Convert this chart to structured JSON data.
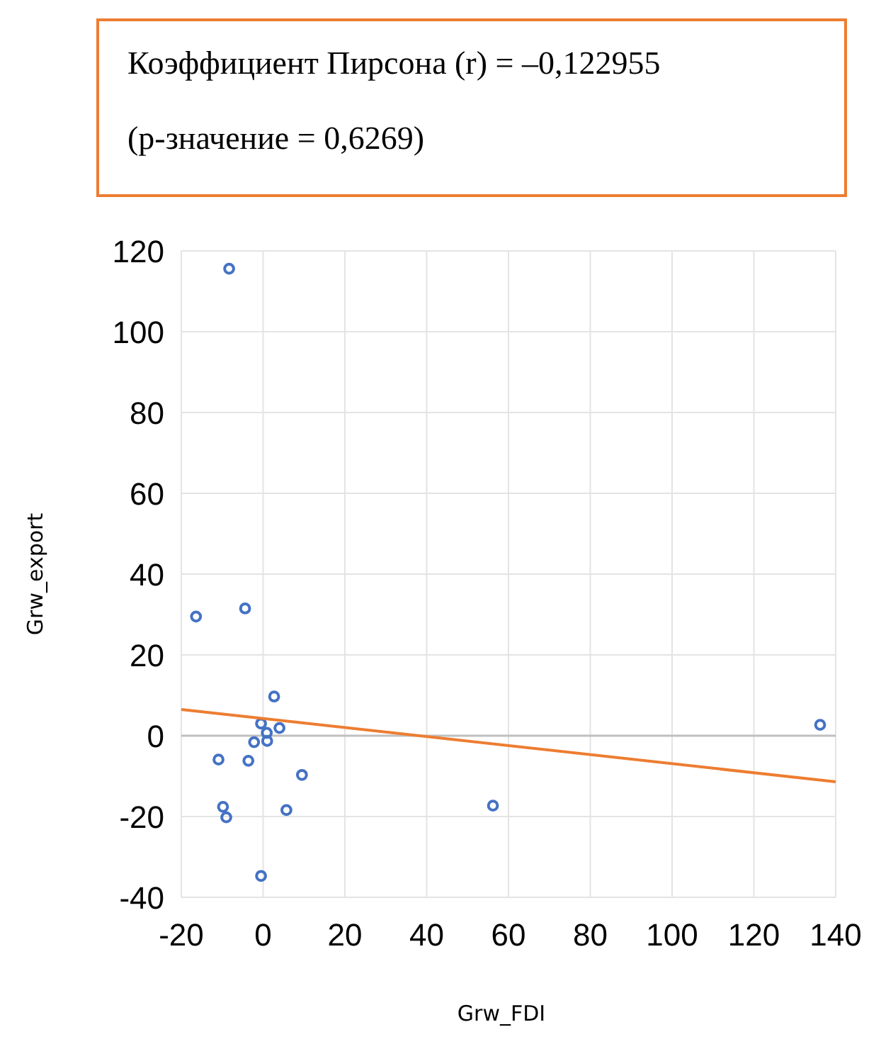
{
  "chart_data": {
    "type": "scatter",
    "xlabel": "Grw_FDI",
    "ylabel": "Grw_export",
    "annotations": [
      "Коэффициент Пирсона (r)  = –0,122955",
      "(р-значение = 0,6269)"
    ],
    "series": [
      {
        "color": "#4472c4",
        "marker": "circle",
        "x": [
          -8.3,
          -16.4,
          -4.4,
          2.7,
          -0.5,
          4.0,
          0.9,
          -2.2,
          1.0,
          -10.9,
          -3.6,
          9.5,
          -9.8,
          -9.0,
          5.7,
          -0.5,
          56.2,
          136.2
        ],
        "values": [
          115.6,
          29.5,
          31.5,
          9.7,
          3.0,
          1.9,
          0.7,
          -1.6,
          -1.3,
          -5.9,
          -6.2,
          -9.7,
          -17.6,
          -20.2,
          -18.4,
          -34.7,
          -17.3,
          2.7
        ]
      },
      {
        "type": "line",
        "color": "#ed7d31",
        "x": [
          -20,
          140
        ],
        "values": [
          6.5,
          -11.4
        ]
      }
    ],
    "xlim": [
      -20,
      140
    ],
    "xticks": [
      -20,
      0,
      20,
      40,
      60,
      80,
      100,
      120,
      140
    ],
    "ylim": [
      -40,
      120
    ],
    "yticks": [
      -40,
      -20,
      0,
      20,
      40,
      60,
      80,
      100,
      120
    ],
    "grid": true
  }
}
